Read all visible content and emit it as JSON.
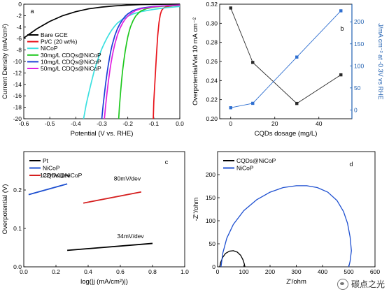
{
  "chart_data": [
    {
      "type": "line",
      "panel_label": "a",
      "xlabel": "Potential (V vs. RHE)",
      "ylabel": "Current Density (mA/cm²)",
      "xlim": [
        -0.6,
        0.0
      ],
      "ylim": [
        -20,
        0
      ],
      "xticks": [
        -0.6,
        -0.5,
        -0.4,
        -0.3,
        -0.2,
        -0.1,
        0.0
      ],
      "xtick_labels": [
        "-0.6",
        "-0.5",
        "-0.4",
        "-0.3",
        "-0.2",
        "-0.1",
        "0.0"
      ],
      "yticks": [
        -20,
        -18,
        -16,
        -14,
        -12,
        -10,
        -8,
        -6,
        -4,
        -2,
        0
      ],
      "ytick_labels": [
        "-20",
        "-18",
        "-16",
        "-14",
        "-12",
        "-10",
        "-8",
        "-6",
        "-4",
        "-2",
        "0"
      ],
      "legend_position": "top-left",
      "series": [
        {
          "name": "Bare GCE",
          "color": "#000000",
          "x": [
            -0.6,
            -0.55,
            -0.5,
            -0.45,
            -0.4,
            -0.35,
            -0.3,
            -0.25,
            -0.2,
            -0.15,
            -0.1,
            -0.05,
            0.0
          ],
          "y": [
            -5.9,
            -4.3,
            -3.0,
            -2.0,
            -1.3,
            -0.8,
            -0.5,
            -0.3,
            -0.15,
            -0.07,
            -0.03,
            -0.01,
            0.0
          ]
        },
        {
          "name": "Pt/C (20 wt%)",
          "color": "#e8141b",
          "x": [
            -0.102,
            -0.1,
            -0.095,
            -0.09,
            -0.085,
            -0.08,
            -0.075,
            -0.07,
            -0.065,
            -0.06,
            -0.05,
            -0.04,
            -0.03,
            -0.02,
            0.0
          ],
          "y": [
            -20,
            -17,
            -13,
            -9,
            -5.5,
            -3.2,
            -1.8,
            -1.1,
            -0.8,
            -0.6,
            -0.45,
            -0.35,
            -0.3,
            -0.25,
            -0.2
          ]
        },
        {
          "name": "NiCoP",
          "color": "#3be0e0",
          "x": [
            -0.37,
            -0.36,
            -0.35,
            -0.34,
            -0.33,
            -0.32,
            -0.31,
            -0.3,
            -0.29,
            -0.28,
            -0.27,
            -0.26,
            -0.25,
            -0.24,
            -0.22,
            -0.2,
            -0.18,
            -0.15,
            -0.1,
            -0.05,
            0.0
          ],
          "y": [
            -20,
            -17.5,
            -15.5,
            -13.6,
            -11.8,
            -10.3,
            -9.0,
            -7.8,
            -6.8,
            -5.9,
            -5.1,
            -4.4,
            -3.8,
            -3.3,
            -2.6,
            -2.1,
            -1.7,
            -1.3,
            -0.9,
            -0.6,
            -0.4
          ]
        },
        {
          "name": "30mg/L CDQs@NiCoP",
          "color": "#1ec81e",
          "x": [
            -0.235,
            -0.232,
            -0.228,
            -0.224,
            -0.22,
            -0.215,
            -0.21,
            -0.205,
            -0.2,
            -0.195,
            -0.19,
            -0.18,
            -0.17,
            -0.16,
            -0.15,
            -0.13,
            -0.1,
            -0.05,
            0.0
          ],
          "y": [
            -20,
            -17.8,
            -15.5,
            -13.4,
            -11.6,
            -9.8,
            -8.2,
            -6.9,
            -5.7,
            -4.8,
            -4.0,
            -2.9,
            -2.1,
            -1.6,
            -1.2,
            -0.8,
            -0.5,
            -0.3,
            -0.2
          ]
        },
        {
          "name": "10mg/L CDQs@NiCoP",
          "color": "#1d3fd6",
          "x": [
            -0.3,
            -0.295,
            -0.29,
            -0.285,
            -0.28,
            -0.275,
            -0.27,
            -0.265,
            -0.26,
            -0.25,
            -0.24,
            -0.23,
            -0.22,
            -0.21,
            -0.2,
            -0.18,
            -0.15,
            -0.1,
            -0.05,
            0.0
          ],
          "y": [
            -20,
            -17.7,
            -15.7,
            -13.8,
            -12.1,
            -10.6,
            -9.3,
            -8.1,
            -7.1,
            -5.5,
            -4.3,
            -3.4,
            -2.7,
            -2.1,
            -1.7,
            -1.1,
            -0.7,
            -0.4,
            -0.25,
            -0.15
          ]
        },
        {
          "name": "50mg/L CDQs@NiCoP",
          "color": "#e020e0",
          "x": [
            -0.29,
            -0.285,
            -0.28,
            -0.275,
            -0.27,
            -0.265,
            -0.26,
            -0.255,
            -0.25,
            -0.24,
            -0.23,
            -0.22,
            -0.21,
            -0.2,
            -0.19,
            -0.17,
            -0.15,
            -0.1,
            -0.05,
            0.0
          ],
          "y": [
            -20,
            -17.6,
            -15.5,
            -13.6,
            -11.9,
            -10.4,
            -9.1,
            -8.0,
            -7.0,
            -5.4,
            -4.2,
            -3.3,
            -2.6,
            -2.1,
            -1.7,
            -1.1,
            -0.8,
            -0.45,
            -0.25,
            -0.15
          ]
        }
      ]
    },
    {
      "type": "line",
      "panel_label": "b",
      "xlabel": "CQDs dosage (mg/L)",
      "ylabel": "Overpotential/Vat 10 mA cm⁻²",
      "y2label": "J/mA cm⁻² at -0.3V vs RHE",
      "xlim": [
        -5,
        55
      ],
      "ylim": [
        0.2,
        0.32
      ],
      "y2lim": [
        -20,
        240
      ],
      "xticks": [
        0,
        20,
        40
      ],
      "xtick_labels": [
        "0",
        "20",
        "40"
      ],
      "yticks": [
        0.2,
        0.22,
        0.24,
        0.26,
        0.28,
        0.3,
        0.32
      ],
      "ytick_labels": [
        "0.20",
        "0.22",
        "0.24",
        "0.26",
        "0.28",
        "0.30",
        "0.32"
      ],
      "y2ticks": [
        0,
        50,
        100,
        150,
        200
      ],
      "y2tick_labels": [
        "0",
        "50",
        "100",
        "150",
        "200"
      ],
      "axis_color_right": "#1f5fb0",
      "series": [
        {
          "name": "",
          "axis": "left",
          "marker": "square",
          "color": "#2a2a2a",
          "x": [
            0,
            10,
            30,
            50
          ],
          "y": [
            0.316,
            0.259,
            0.216,
            0.246
          ]
        },
        {
          "name": "",
          "axis": "right",
          "marker": "square",
          "color": "#2f6fd0",
          "x": [
            0,
            10,
            30,
            50
          ],
          "y": [
            5,
            15,
            120,
            225
          ]
        }
      ]
    },
    {
      "type": "line",
      "panel_label": "c",
      "xlabel": "log(|j (mA/cm²)|)",
      "ylabel": "Overpotential (V)",
      "xlim": [
        0.0,
        1.0
      ],
      "ylim": [
        0.0,
        0.3
      ],
      "xticks": [
        0.0,
        0.2,
        0.4,
        0.6,
        0.8,
        1.0
      ],
      "xtick_labels": [
        "0.0",
        "0.2",
        "0.4",
        "0.6",
        "0.8",
        "1.0"
      ],
      "yticks": [
        0.0,
        0.1,
        0.2
      ],
      "ytick_labels": [
        "0.0",
        "0.1",
        "0.2"
      ],
      "legend_position": "top-left",
      "series": [
        {
          "name": "Pt",
          "color": "#000000",
          "x": [
            0.27,
            0.8
          ],
          "y": [
            0.043,
            0.061
          ]
        },
        {
          "name": "NiCoP",
          "color": "#1d4fd0",
          "x": [
            0.03,
            0.27
          ],
          "y": [
            0.188,
            0.216
          ]
        },
        {
          "name": "CQDs@NiCoP",
          "color": "#d51f1f",
          "x": [
            0.37,
            0.73
          ],
          "y": [
            0.166,
            0.195
          ]
        }
      ],
      "annotations": [
        {
          "text": "122mV/dev",
          "x": 0.1,
          "y": 0.233
        },
        {
          "text": "80mV/dev",
          "x": 0.56,
          "y": 0.225
        },
        {
          "text": "34mV/dev",
          "x": 0.58,
          "y": 0.075
        }
      ]
    },
    {
      "type": "line",
      "panel_label": "d",
      "xlabel": "Z'/ohm",
      "ylabel": "-Z''/ohm",
      "xlim": [
        0,
        600
      ],
      "ylim": [
        0,
        250
      ],
      "xticks": [
        0,
        100,
        200,
        300,
        400,
        500,
        600
      ],
      "xtick_labels": [
        "0",
        "100",
        "200",
        "300",
        "400",
        "500",
        "600"
      ],
      "yticks": [
        0,
        50,
        100,
        150,
        200
      ],
      "ytick_labels": [
        "0",
        "50",
        "100",
        "150",
        "200"
      ],
      "legend_position": "top-left",
      "series": [
        {
          "name": "CQDs@NiCoP",
          "color": "#000000",
          "x": [
            8,
            12,
            20,
            30,
            45,
            60,
            75,
            88,
            97,
            102,
            104
          ],
          "y": [
            0,
            10,
            21,
            29,
            34,
            35,
            32,
            25,
            15,
            6,
            0
          ]
        },
        {
          "name": "NiCoP",
          "color": "#1d4fd0",
          "x": [
            13,
            20,
            35,
            60,
            100,
            150,
            200,
            250,
            300,
            340,
            380,
            420,
            455,
            480,
            495,
            505,
            510,
            505,
            500
          ],
          "y": [
            0,
            30,
            62,
            92,
            122,
            146,
            162,
            172,
            176,
            176,
            172,
            162,
            144,
            120,
            95,
            65,
            35,
            12,
            0
          ]
        }
      ]
    }
  ],
  "watermark": {
    "text": "碳点之光",
    "icon": "wechat-icon"
  }
}
